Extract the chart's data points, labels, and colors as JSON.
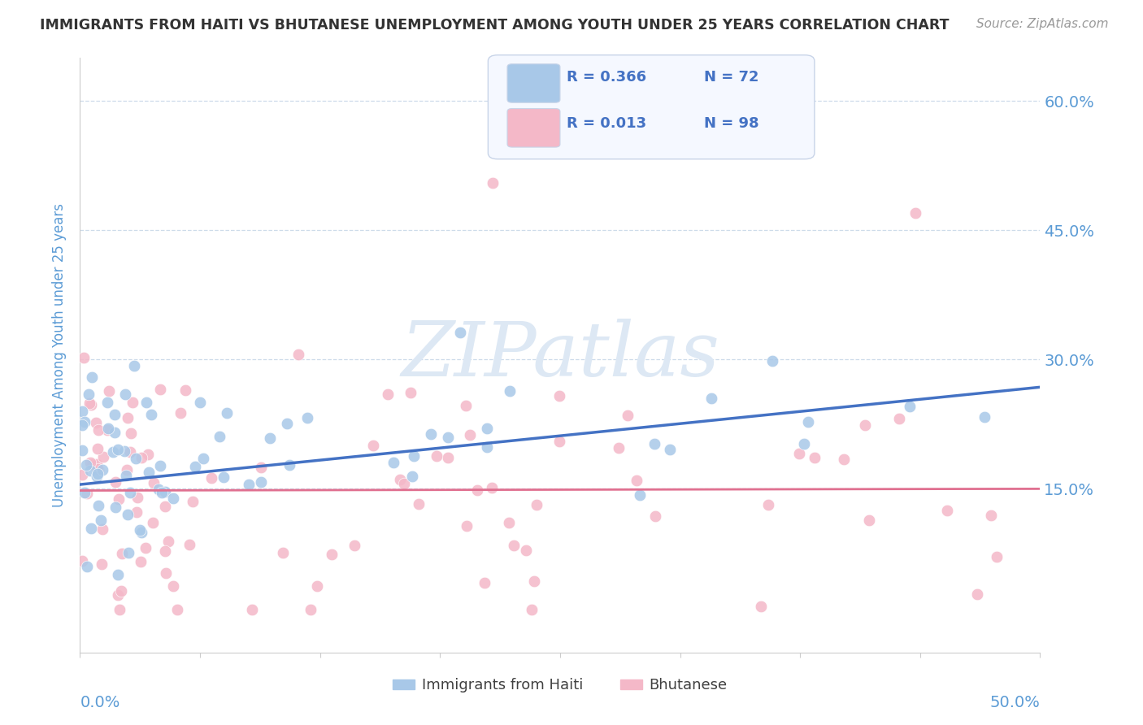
{
  "title": "IMMIGRANTS FROM HAITI VS BHUTANESE UNEMPLOYMENT AMONG YOUTH UNDER 25 YEARS CORRELATION CHART",
  "source": "Source: ZipAtlas.com",
  "ylabel": "Unemployment Among Youth under 25 years",
  "xmin": 0.0,
  "xmax": 0.5,
  "ymin": -0.04,
  "ymax": 0.65,
  "haiti_R": 0.366,
  "haiti_N": 72,
  "bhutan_R": 0.013,
  "bhutan_N": 98,
  "haiti_color": "#a8c8e8",
  "bhutan_color": "#f4b8c8",
  "haiti_line_color": "#4472c4",
  "bhutan_line_color": "#e07090",
  "title_color": "#333333",
  "axis_label_color": "#5b9bd5",
  "watermark_color": "#dde8f4",
  "background_color": "#ffffff",
  "legend_box_color": "#f5f8ff",
  "legend_border_color": "#c8d4e8",
  "grid_color": "#c8d8e8",
  "haiti_line_start": 0.155,
  "haiti_line_end": 0.268,
  "bhutan_line_start": 0.148,
  "bhutan_line_end": 0.15
}
